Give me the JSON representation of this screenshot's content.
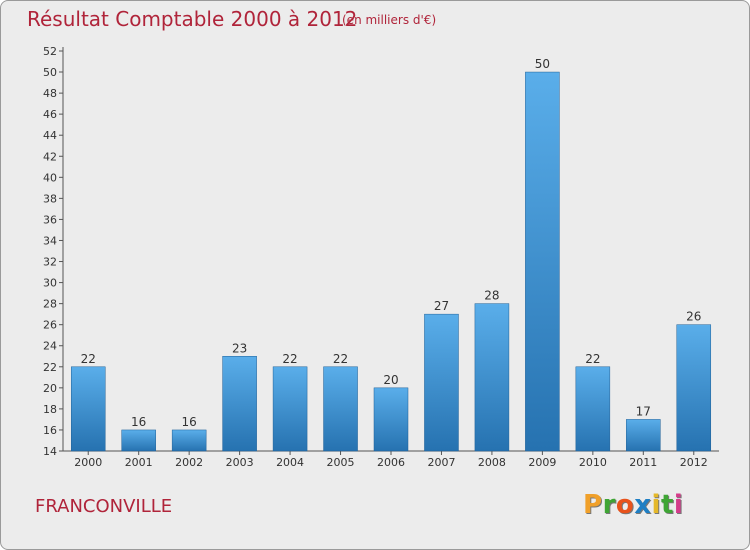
{
  "header": {
    "title": "Résultat Comptable 2000 à 2012",
    "subtitle": "(en milliers d'€)"
  },
  "footer": {
    "commune": "FRANCONVILLE",
    "logo_letters": [
      "P",
      "r",
      "o",
      "x",
      "i",
      "t",
      "i"
    ],
    "logo_colors": [
      "#f0a02a",
      "#3fa535",
      "#e8521b",
      "#1f7fc4",
      "#e5b82a",
      "#3fa535",
      "#d43c8a"
    ]
  },
  "colors": {
    "bar_top": "#5aaeea",
    "bar_bottom": "#2672b0",
    "bar_edge": "#1e5f96",
    "title": "#b0243a"
  },
  "chart_data": {
    "type": "bar",
    "title": "Résultat Comptable 2000 à 2012",
    "subtitle": "(en milliers d'€)",
    "xlabel": "",
    "ylabel": "",
    "categories": [
      "2000",
      "2001",
      "2002",
      "2003",
      "2004",
      "2005",
      "2006",
      "2007",
      "2008",
      "2009",
      "2010",
      "2011",
      "2012"
    ],
    "values": [
      22,
      16,
      16,
      23,
      22,
      22,
      20,
      27,
      28,
      50,
      22,
      17,
      26
    ],
    "ylim": [
      14,
      52
    ],
    "yticks": [
      14,
      16,
      18,
      20,
      22,
      24,
      26,
      28,
      30,
      32,
      34,
      36,
      38,
      40,
      42,
      44,
      46,
      48,
      50,
      52
    ],
    "grid": false,
    "legend": "none"
  }
}
